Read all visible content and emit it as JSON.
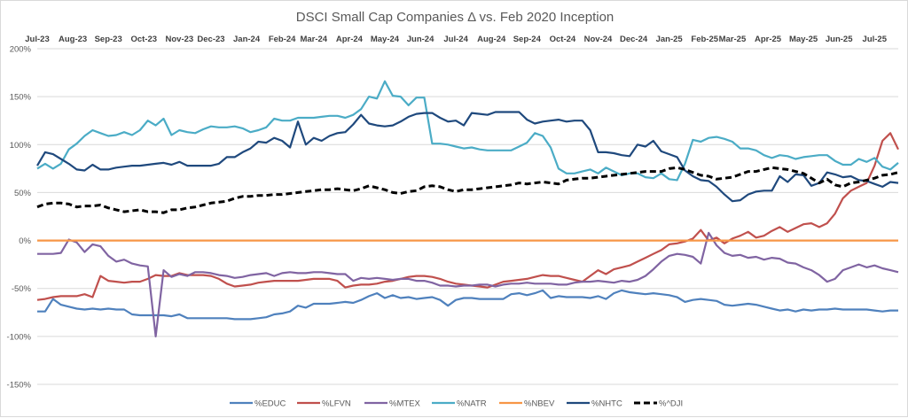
{
  "chart_data": {
    "type": "line",
    "title": "DSCI Small Cap Companies Δ vs. Feb 2020 Inception",
    "xlabel": "",
    "ylabel": "",
    "ylim": [
      -150,
      200
    ],
    "yticks": [
      200,
      150,
      100,
      50,
      0,
      -50,
      -100,
      -150
    ],
    "ytick_labels": [
      "200%",
      "150%",
      "100%",
      "50%",
      "0%",
      "-50%",
      "-100%",
      "-150%"
    ],
    "x_axis_position": "top",
    "grid": true,
    "legend_position": "bottom",
    "month_labels": [
      "Jul-23",
      "Aug-23",
      "Sep-23",
      "Oct-23",
      "Nov-23",
      "Dec-23",
      "Jan-24",
      "Feb-24",
      "Mar-24",
      "Apr-24",
      "May-24",
      "Jun-24",
      "Jul-24",
      "Aug-24",
      "Sep-24",
      "Oct-24",
      "Nov-24",
      "Dec-24",
      "Jan-25",
      "Feb-25",
      "Mar-25",
      "Apr-25",
      "May-25",
      "Jun-25",
      "Jul-25"
    ],
    "month_label_week_index": [
      0,
      4.5,
      9,
      13.5,
      18,
      22,
      26.5,
      31,
      35,
      39.5,
      44,
      48.5,
      53,
      57.5,
      62,
      66.5,
      71,
      75.5,
      80,
      84.5,
      88,
      92.5,
      97,
      101.5,
      106
    ],
    "x_unit": "week index (weekly observations, Jul-23 through early Aug-25)",
    "num_points": 110,
    "series": [
      {
        "name": "%EDUC",
        "color": "#4f81bd",
        "dash": "solid",
        "values": [
          -74,
          -74,
          -61,
          -67,
          -69,
          -71,
          -72,
          -71,
          -72,
          -71,
          -72,
          -72,
          -77,
          -78,
          -78,
          -78,
          -78,
          -79,
          -77,
          -81,
          -81,
          -81,
          -81,
          -81,
          -81,
          -82,
          -82,
          -82,
          -81,
          -80,
          -77,
          -76,
          -74,
          -68,
          -70,
          -66,
          -66,
          -66,
          -65,
          -64,
          -65,
          -62,
          -58,
          -55,
          -60,
          -57,
          -60,
          -59,
          -61,
          -60,
          -59,
          -62,
          -68,
          -62,
          -60,
          -60,
          -61,
          -61,
          -61,
          -61,
          -56,
          -55,
          -57,
          -55,
          -52,
          -60,
          -58,
          -59,
          -59,
          -59,
          -60,
          -58,
          -61,
          -55,
          -52,
          -54,
          -55,
          -56,
          -55,
          -56,
          -57,
          -59,
          -64,
          -62,
          -61,
          -62,
          -63,
          -67,
          -68,
          -67,
          -66,
          -67,
          -69,
          -71,
          -73,
          -72,
          -74,
          -72,
          -73,
          -72,
          -72,
          -71,
          -72,
          -72,
          -72,
          -72,
          -73,
          -74,
          -73,
          -73
        ],
        "note": "approximate read-off"
      },
      {
        "name": "%LFVN",
        "color": "#c0504d",
        "dash": "solid",
        "values": [
          -62,
          -61,
          -59,
          -58,
          -58,
          -58,
          -56,
          -59,
          -37,
          -42,
          -43,
          -44,
          -43,
          -43,
          -40,
          -36,
          -37,
          -37,
          -34,
          -36,
          -36,
          -36,
          -37,
          -40,
          -45,
          -48,
          -47,
          -46,
          -44,
          -43,
          -42,
          -42,
          -42,
          -42,
          -41,
          -40,
          -40,
          -40,
          -42,
          -49,
          -47,
          -46,
          -46,
          -45,
          -43,
          -42,
          -40,
          -38,
          -37,
          -37,
          -38,
          -40,
          -43,
          -45,
          -46,
          -47,
          -48,
          -49,
          -46,
          -43,
          -42,
          -41,
          -40,
          -38,
          -36,
          -37,
          -37,
          -39,
          -41,
          -43,
          -37,
          -31,
          -35,
          -30,
          -28,
          -26,
          -22,
          -18,
          -14,
          -10,
          -4,
          -3,
          -1,
          2,
          11,
          0,
          3,
          -3,
          2,
          5,
          9,
          3,
          5,
          10,
          14,
          9,
          13,
          17,
          18,
          14,
          18,
          28,
          44,
          52,
          56,
          60,
          78,
          104,
          112,
          95
        ],
        "note": "approximate read-off"
      },
      {
        "name": "%MTEX",
        "color": "#8064a2",
        "dash": "solid",
        "values": [
          -14,
          -14,
          -14,
          -13,
          1,
          -2,
          -12,
          -4,
          -6,
          -16,
          -22,
          -20,
          -24,
          -26,
          -27,
          -100,
          -31,
          -38,
          -35,
          -37,
          -33,
          -33,
          -34,
          -36,
          -37,
          -39,
          -38,
          -36,
          -35,
          -34,
          -37,
          -34,
          -33,
          -34,
          -34,
          -33,
          -33,
          -34,
          -35,
          -35,
          -42,
          -39,
          -40,
          -39,
          -40,
          -41,
          -40,
          -40,
          -42,
          -42,
          -44,
          -47,
          -47,
          -48,
          -47,
          -47,
          -46,
          -46,
          -48,
          -46,
          -45,
          -45,
          -44,
          -45,
          -45,
          -45,
          -46,
          -46,
          -44,
          -43,
          -43,
          -42,
          -43,
          -44,
          -42,
          -43,
          -41,
          -37,
          -30,
          -22,
          -16,
          -14,
          -15,
          -17,
          -24,
          8,
          -5,
          -13,
          -16,
          -15,
          -18,
          -17,
          -20,
          -18,
          -19,
          -23,
          -24,
          -28,
          -31,
          -36,
          -43,
          -40,
          -31,
          -28,
          -25,
          -28,
          -26,
          -29,
          -31,
          -33
        ],
        "note": "approximate read-off"
      },
      {
        "name": "%NATR",
        "color": "#4bacc6",
        "dash": "solid",
        "values": [
          75,
          80,
          75,
          80,
          95,
          101,
          109,
          115,
          112,
          109,
          110,
          113,
          110,
          115,
          125,
          120,
          127,
          110,
          115,
          113,
          112,
          116,
          119,
          118,
          118,
          119,
          117,
          113,
          115,
          118,
          127,
          125,
          125,
          128,
          128,
          128,
          129,
          130,
          130,
          128,
          131,
          137,
          150,
          148,
          166,
          151,
          150,
          141,
          149,
          149,
          101,
          101,
          100,
          98,
          96,
          97,
          95,
          94,
          94,
          94,
          94,
          98,
          102,
          112,
          109,
          97,
          75,
          70,
          70,
          72,
          74,
          70,
          76,
          72,
          68,
          70,
          70,
          66,
          65,
          70,
          64,
          63,
          80,
          105,
          103,
          107,
          108,
          106,
          103,
          96,
          96,
          94,
          89,
          86,
          89,
          88,
          85,
          87,
          88,
          89,
          89,
          83,
          79,
          79,
          85,
          82,
          86,
          77,
          74,
          81
        ],
        "note": "approximate read-off"
      },
      {
        "name": "%NBEV",
        "color": "#f79646",
        "dash": "solid",
        "values": [
          0,
          0,
          0,
          0,
          0,
          0,
          0,
          0,
          0,
          0,
          0,
          0,
          0,
          0,
          0,
          0,
          0,
          0,
          0,
          0,
          0,
          0,
          0,
          0,
          0,
          0,
          0,
          0,
          0,
          0,
          0,
          0,
          0,
          0,
          0,
          0,
          0,
          0,
          0,
          0,
          0,
          0,
          0,
          0,
          0,
          0,
          0,
          0,
          0,
          0,
          0,
          0,
          0,
          0,
          0,
          0,
          0,
          0,
          0,
          0,
          0,
          0,
          0,
          0,
          0,
          0,
          0,
          0,
          0,
          0,
          0,
          0,
          0,
          0,
          0,
          0,
          0,
          0,
          0,
          0,
          0,
          0,
          0,
          0,
          0,
          0,
          0,
          0,
          0,
          0,
          0,
          0,
          0,
          0,
          0,
          0,
          0,
          0,
          0,
          0,
          0,
          0,
          0,
          0,
          0,
          0,
          0,
          0,
          0,
          0
        ],
        "note": "flat at 0%"
      },
      {
        "name": "%NHTC",
        "color": "#1f497d",
        "dash": "solid",
        "values": [
          78,
          92,
          90,
          85,
          80,
          74,
          73,
          79,
          74,
          74,
          76,
          77,
          78,
          78,
          79,
          80,
          81,
          79,
          82,
          78,
          78,
          78,
          78,
          80,
          87,
          87,
          92,
          96,
          103,
          102,
          107,
          104,
          97,
          124,
          100,
          107,
          104,
          109,
          112,
          113,
          121,
          131,
          122,
          120,
          119,
          120,
          124,
          129,
          132,
          133,
          133,
          128,
          124,
          125,
          120,
          133,
          132,
          131,
          134,
          134,
          134,
          134,
          126,
          122,
          124,
          125,
          126,
          124,
          125,
          125,
          115,
          92,
          92,
          91,
          89,
          88,
          100,
          98,
          104,
          93,
          90,
          87,
          73,
          67,
          63,
          62,
          56,
          48,
          41,
          42,
          48,
          51,
          52,
          52,
          67,
          61,
          69,
          68,
          57,
          60,
          71,
          69,
          66,
          67,
          63,
          62,
          59,
          56,
          61,
          60
        ],
        "note": "approximate read-off"
      },
      {
        "name": "%^DJI",
        "color": "#000000",
        "dash": "dashed",
        "values": [
          35,
          38,
          39,
          39,
          38,
          35,
          36,
          36,
          37,
          34,
          32,
          30,
          31,
          32,
          30,
          30,
          29,
          32,
          32,
          34,
          35,
          37,
          39,
          40,
          41,
          44,
          46,
          46,
          47,
          47,
          48,
          48,
          49,
          50,
          51,
          52,
          53,
          53,
          54,
          53,
          52,
          54,
          57,
          55,
          53,
          50,
          49,
          51,
          52,
          56,
          57,
          56,
          53,
          51,
          53,
          53,
          54,
          55,
          56,
          57,
          58,
          60,
          59,
          60,
          61,
          60,
          59,
          63,
          64,
          65,
          65,
          66,
          67,
          68,
          69,
          70,
          71,
          72,
          72,
          72,
          75,
          76,
          74,
          71,
          68,
          67,
          64,
          65,
          66,
          69,
          72,
          72,
          74,
          76,
          75,
          74,
          72,
          70,
          65,
          60,
          64,
          58,
          56,
          60,
          61,
          63,
          65,
          68,
          69,
          71
        ],
        "note": "approximate read-off"
      }
    ]
  },
  "legend": {
    "items": [
      {
        "label": "%EDUC",
        "color": "#4f81bd",
        "dash": "solid"
      },
      {
        "label": "%LFVN",
        "color": "#c0504d",
        "dash": "solid"
      },
      {
        "label": "%MTEX",
        "color": "#8064a2",
        "dash": "solid"
      },
      {
        "label": "%NATR",
        "color": "#4bacc6",
        "dash": "solid"
      },
      {
        "label": "%NBEV",
        "color": "#f79646",
        "dash": "solid"
      },
      {
        "label": "%NHTC",
        "color": "#1f497d",
        "dash": "solid"
      },
      {
        "label": "%^DJI",
        "color": "#000000",
        "dash": "dashed"
      }
    ]
  }
}
